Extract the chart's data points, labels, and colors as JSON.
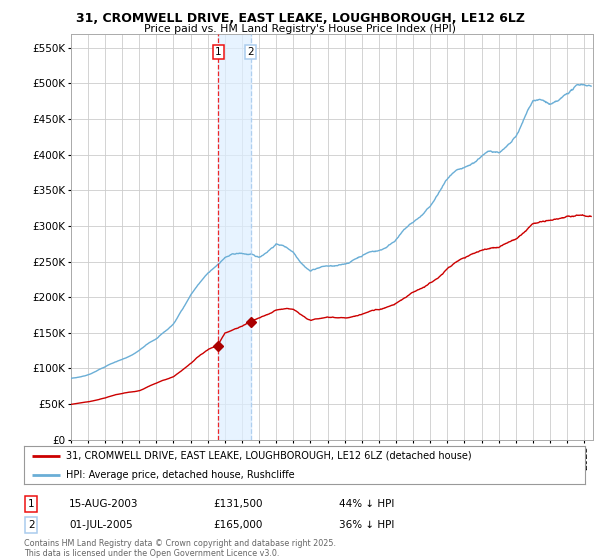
{
  "title": "31, CROMWELL DRIVE, EAST LEAKE, LOUGHBOROUGH, LE12 6LZ",
  "subtitle": "Price paid vs. HM Land Registry's House Price Index (HPI)",
  "yticks": [
    0,
    50000,
    100000,
    150000,
    200000,
    250000,
    300000,
    350000,
    400000,
    450000,
    500000,
    550000
  ],
  "ytick_labels": [
    "£0",
    "£50K",
    "£100K",
    "£150K",
    "£200K",
    "£250K",
    "£300K",
    "£350K",
    "£400K",
    "£450K",
    "£500K",
    "£550K"
  ],
  "ylim": [
    0,
    570000
  ],
  "xlim_start": 1995.0,
  "xlim_end": 2025.5,
  "hpi_color": "#6aaed6",
  "price_color": "#cc0000",
  "vline1_color": "#ee1111",
  "vline2_color": "#aaccee",
  "shade_color": "#ddeeff",
  "marker_color": "#aa0000",
  "transactions": [
    {
      "date": 2003.62,
      "price": 131500,
      "label": "1"
    },
    {
      "date": 2005.5,
      "price": 165000,
      "label": "2"
    }
  ],
  "legend_line1": "31, CROMWELL DRIVE, EAST LEAKE, LOUGHBOROUGH, LE12 6LZ (detached house)",
  "legend_line2": "HPI: Average price, detached house, Rushcliffe",
  "table_rows": [
    {
      "num": "1",
      "date": "15-AUG-2003",
      "price": "£131,500",
      "info": "44% ↓ HPI"
    },
    {
      "num": "2",
      "date": "01-JUL-2005",
      "price": "£165,000",
      "info": "36% ↓ HPI"
    }
  ],
  "footer": "Contains HM Land Registry data © Crown copyright and database right 2025.\nThis data is licensed under the Open Government Licence v3.0.",
  "background_color": "#ffffff",
  "grid_color": "#cccccc"
}
